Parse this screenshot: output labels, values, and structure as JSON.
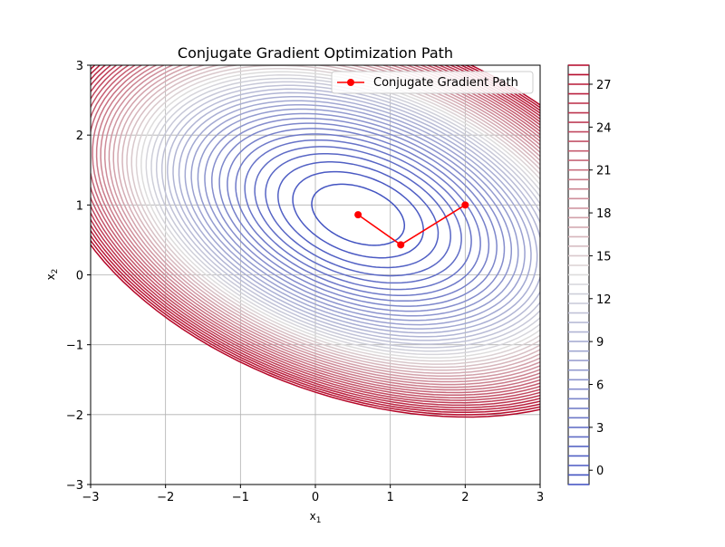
{
  "chart_data": {
    "type": "line",
    "title": "Conjugate Gradient Optimization Path",
    "xlabel": "x",
    "xlabel_sub": "1",
    "ylabel": "x",
    "ylabel_sub": "2",
    "xlim": [
      -3,
      3
    ],
    "ylim": [
      -3,
      3
    ],
    "grid": true,
    "x_ticks": [
      -3,
      -2,
      -1,
      0,
      1,
      2,
      3
    ],
    "y_ticks": [
      -3,
      -2,
      -1,
      0,
      1,
      2,
      3
    ],
    "legend": {
      "placement": "top-right",
      "entries": [
        "Conjugate Gradient Path"
      ]
    },
    "series": [
      {
        "name": "Conjugate Gradient Path",
        "color": "#ff0000",
        "marker": "circle",
        "x": [
          2.0,
          1.14,
          0.57
        ],
        "y": [
          1.0,
          0.43,
          0.86
        ]
      }
    ],
    "contour": {
      "colormap": "coolwarm",
      "function": "quadratic",
      "levels": [
        -1,
        -0.33,
        0.33,
        1,
        1.67,
        2.33,
        3,
        3.67,
        4.33,
        5,
        5.67,
        6.33,
        7,
        7.67,
        8.33,
        9,
        9.67,
        10.33,
        11,
        11.67,
        12.33,
        13,
        13.67,
        14.33,
        15,
        15.67,
        16.33,
        17,
        17.67,
        18.33,
        19,
        19.67,
        20.33,
        21,
        21.67,
        22.33,
        23,
        23.67,
        24.33,
        25,
        25.67,
        26.33,
        27,
        27.67,
        28.33
      ],
      "minimum": [
        0.57,
        0.86
      ],
      "Q": [
        [
          2,
          1
        ],
        [
          1,
          4
        ]
      ],
      "colors": {
        "low": "#3b4cc0",
        "mid": "#dddcdc",
        "high": "#b40426"
      }
    },
    "colorbar": {
      "min": -1,
      "max": 28.33,
      "ticks": [
        "0",
        "3",
        "6",
        "9",
        "12",
        "15",
        "18",
        "21",
        "24",
        "27"
      ]
    }
  }
}
